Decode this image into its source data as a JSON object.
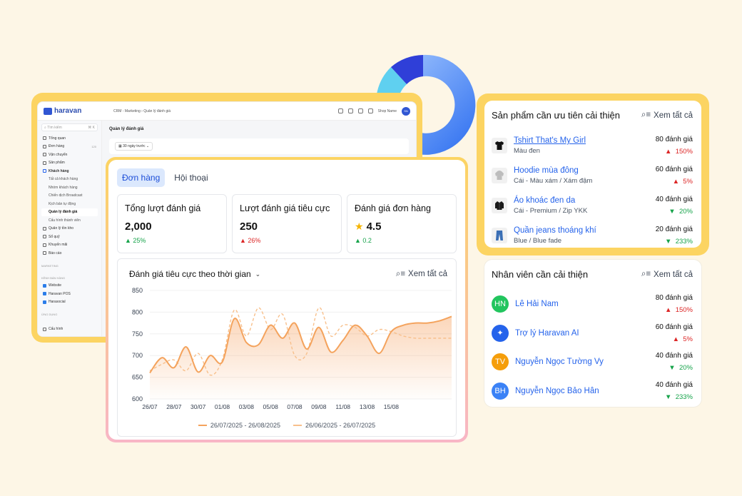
{
  "admin": {
    "logo": "haravan",
    "breadcrumb": "CRM - Marketing  ›  Quản lý đánh giá",
    "shop_name": "Shop Name",
    "shop_initials": "SN",
    "search_placeholder": "Tìm kiếm",
    "search_shortcut": "⌘ K",
    "nav": [
      {
        "label": "Tổng quan",
        "badge": ""
      },
      {
        "label": "Đơn hàng",
        "badge": "120"
      },
      {
        "label": "Vận chuyển",
        "badge": ""
      },
      {
        "label": "Sản phẩm",
        "badge": ""
      },
      {
        "label": "Khách hàng",
        "badge": ""
      }
    ],
    "subnav": [
      "Tất cả khách hàng",
      "Nhóm khách hàng",
      "Chiến dịch Broadcast",
      "Kịch bản tự động",
      "Quản lý đánh giá",
      "Cấu hình thành viên"
    ],
    "nav2": [
      "Quản lý tồn kho",
      "Sổ quỹ",
      "Khuyến mãi",
      "Báo cáo"
    ],
    "section_marketing": "MARKETING",
    "section_channels": "KÊNH BÁN HÀNG",
    "channels": [
      "Website",
      "Haravan POS",
      "Harasocial"
    ],
    "section_apps": "ỨNG DỤNG",
    "settings": "Cấu hình",
    "page_title": "Quản lý đánh giá",
    "date_filter": "30 ngày trước"
  },
  "main": {
    "tabs": [
      "Đơn hàng",
      "Hội thoại"
    ],
    "stats": [
      {
        "label": "Tổng lượt đánh giá",
        "value": "2,000",
        "change": "25%",
        "direction": "up",
        "color": "#16a34a"
      },
      {
        "label": "Lượt đánh giá tiêu cực",
        "value": "250",
        "change": "26%",
        "direction": "up",
        "color": "#dc2626"
      },
      {
        "label": "Đánh giá đơn hàng",
        "value": "4.5",
        "change": "0.2",
        "direction": "up",
        "color": "#16a34a"
      }
    ],
    "chart_title": "Đánh giá tiêu cực theo thời gian",
    "see_all": "Xem tất cả"
  },
  "chart_data": {
    "type": "line",
    "title": "Đánh giá tiêu cực theo thời gian",
    "x": [
      "26/07",
      "27/07",
      "28/07",
      "29/07",
      "30/07",
      "31/07",
      "01/08",
      "02/08",
      "03/08",
      "04/08",
      "05/08",
      "06/08",
      "07/08",
      "08/08",
      "09/08",
      "10/08",
      "11/08",
      "12/08",
      "13/08",
      "14/08",
      "15/08",
      "16/08",
      "17/08",
      "18/08",
      "19/08",
      "20/08"
    ],
    "x_ticks": [
      "26/07",
      "28/07",
      "30/07",
      "01/08",
      "03/08",
      "05/08",
      "07/08",
      "09/08",
      "11/08",
      "13/08",
      "15/08"
    ],
    "ylim": [
      600,
      850
    ],
    "y_ticks": [
      600,
      650,
      700,
      750,
      800,
      850
    ],
    "grid": true,
    "legend_position": "bottom",
    "series": [
      {
        "name": "26/07/2025 - 26/08/2025",
        "color": "#f4a35d",
        "style": "solid",
        "fill": true,
        "values": [
          660,
          695,
          672,
          720,
          662,
          700,
          685,
          785,
          730,
          725,
          770,
          740,
          775,
          715,
          765,
          708,
          735,
          770,
          745,
          705,
          755,
          770,
          775,
          775,
          780,
          790
        ]
      },
      {
        "name": "26/06/2025 - 26/07/2025",
        "color": "#f8c08c",
        "style": "dashed",
        "fill": false,
        "values": [
          665,
          680,
          690,
          665,
          705,
          655,
          690,
          805,
          745,
          810,
          760,
          795,
          700,
          705,
          810,
          745,
          770,
          765,
          745,
          760,
          755,
          745,
          740,
          740,
          740,
          740
        ]
      }
    ]
  },
  "products": {
    "title": "Sản phẩm cần ưu tiên cải thiện",
    "see_all": "Xem tất cả",
    "items": [
      {
        "name": "Tshirt That's My Girl",
        "variant": "Màu đen",
        "count": "80 đánh giá",
        "change": "150%",
        "direction": "up",
        "color": "#dc2626",
        "icon": "tshirt-icon"
      },
      {
        "name": "Hoodie mùa đông",
        "variant": "Cái - Màu xám / Xám đậm",
        "count": "60 đánh giá",
        "change": "5%",
        "direction": "up",
        "color": "#dc2626",
        "icon": "hoodie-icon"
      },
      {
        "name": "Áo khoác đen da",
        "variant": "Cái - Premium / Zip YKK",
        "count": "40 đánh giá",
        "change": "20%",
        "direction": "down",
        "color": "#16a34a",
        "icon": "jacket-icon"
      },
      {
        "name": "Quần jeans thoáng khí",
        "variant": "Blue / Blue fade",
        "count": "20 đánh giá",
        "change": "233%",
        "direction": "down",
        "color": "#16a34a",
        "icon": "jeans-icon"
      }
    ]
  },
  "employees": {
    "title": "Nhân viên cần cải thiện",
    "see_all": "Xem tất cả",
    "items": [
      {
        "initials": "HN",
        "name": "Lê Hải Nam",
        "count": "80 đánh giá",
        "change": "150%",
        "direction": "up",
        "color": "#dc2626",
        "avatar_color": "#22c55e"
      },
      {
        "initials": "✦",
        "name": "Trợ lý Haravan AI",
        "count": "60 đánh giá",
        "change": "5%",
        "direction": "up",
        "color": "#dc2626",
        "avatar_color": "#2563eb"
      },
      {
        "initials": "TV",
        "name": "Nguyễn Ngọc Tường Vy",
        "count": "40 đánh giá",
        "change": "20%",
        "direction": "down",
        "color": "#16a34a",
        "avatar_color": "#f59e0b"
      },
      {
        "initials": "BH",
        "name": "Nguyễn Ngọc Bảo Hân",
        "count": "40 đánh giá",
        "change": "233%",
        "direction": "down",
        "color": "#16a34a",
        "avatar_color": "#3b82f6"
      }
    ]
  }
}
